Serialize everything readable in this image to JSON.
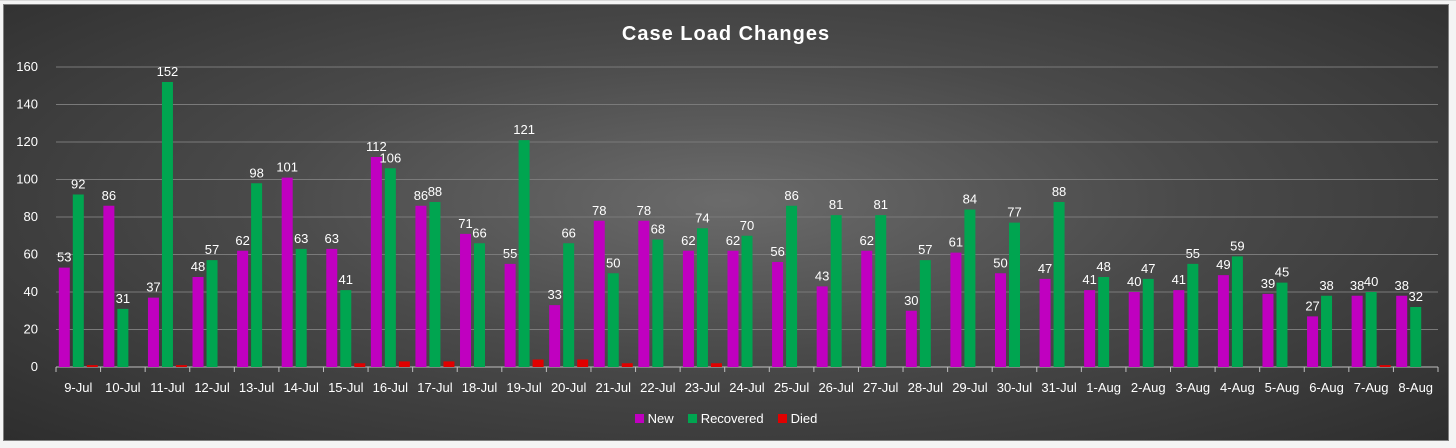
{
  "chart_data": {
    "type": "bar",
    "title": "Case Load Changes",
    "xlabel": "",
    "ylabel": "",
    "ylim": [
      0,
      160
    ],
    "yticks": [
      0,
      20,
      40,
      60,
      80,
      100,
      120,
      140,
      160
    ],
    "grid": true,
    "legend_position": "bottom",
    "categories": [
      "9-Jul",
      "10-Jul",
      "11-Jul",
      "12-Jul",
      "13-Jul",
      "14-Jul",
      "15-Jul",
      "16-Jul",
      "17-Jul",
      "18-Jul",
      "19-Jul",
      "20-Jul",
      "21-Jul",
      "22-Jul",
      "23-Jul",
      "24-Jul",
      "25-Jul",
      "26-Jul",
      "27-Jul",
      "28-Jul",
      "29-Jul",
      "30-Jul",
      "31-Jul",
      "1-Aug",
      "2-Aug",
      "3-Aug",
      "4-Aug",
      "5-Aug",
      "6-Aug",
      "7-Aug",
      "8-Aug"
    ],
    "series": [
      {
        "name": "New",
        "color": "#c000c0",
        "labels_shown": true,
        "values": [
          53,
          86,
          37,
          48,
          62,
          101,
          63,
          112,
          86,
          71,
          55,
          33,
          78,
          78,
          62,
          62,
          56,
          43,
          62,
          30,
          61,
          50,
          47,
          41,
          40,
          41,
          49,
          39,
          27,
          38,
          38
        ]
      },
      {
        "name": "Recovered",
        "color": "#00a550",
        "labels_shown": true,
        "values": [
          92,
          31,
          152,
          57,
          98,
          63,
          41,
          106,
          88,
          66,
          121,
          66,
          50,
          68,
          74,
          70,
          86,
          81,
          81,
          57,
          84,
          77,
          88,
          48,
          47,
          55,
          59,
          45,
          38,
          40,
          32
        ]
      },
      {
        "name": "Died",
        "color": "#e00000",
        "labels_shown": false,
        "values": [
          1,
          0,
          1,
          0,
          0,
          0,
          2,
          3,
          3,
          0,
          4,
          4,
          2,
          0,
          2,
          0,
          0,
          0,
          0,
          0,
          0,
          0,
          0,
          0,
          0,
          0,
          0,
          0,
          0,
          1,
          0
        ]
      }
    ]
  }
}
